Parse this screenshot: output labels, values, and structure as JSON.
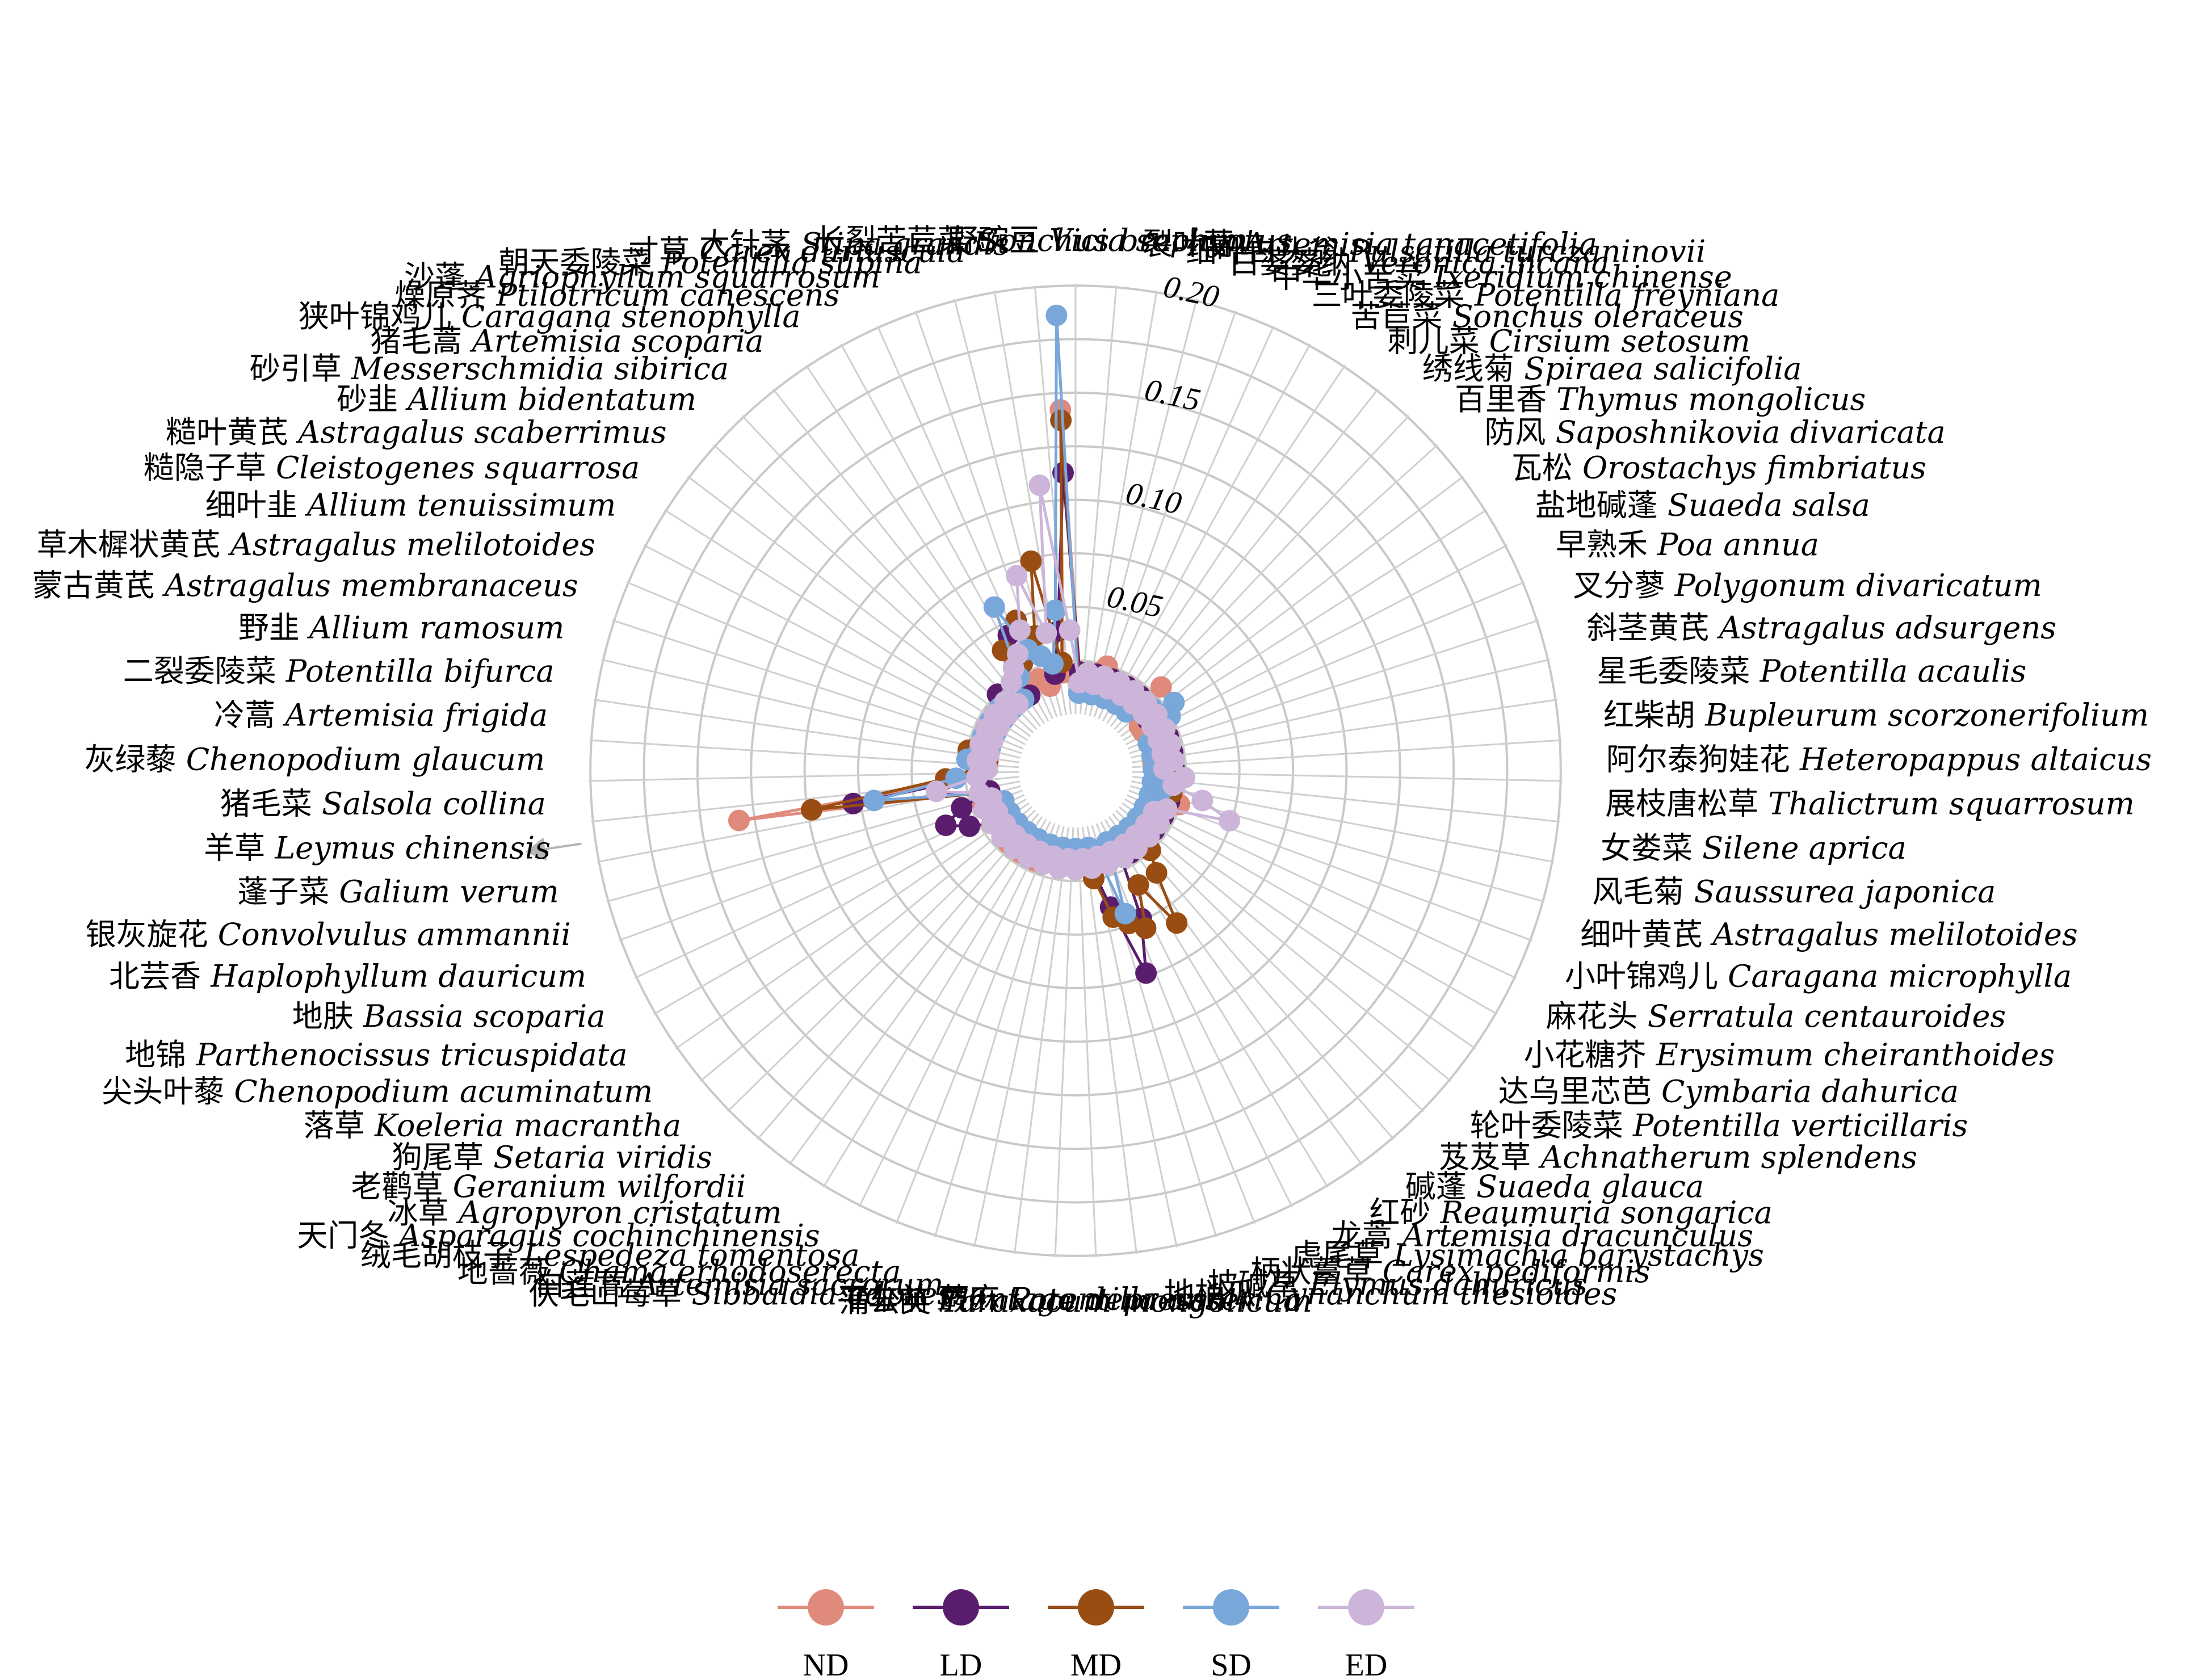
{
  "chart_data": {
    "type": "radar",
    "rlim": [
      0,
      0.2
    ],
    "radial_ticks": [
      "0.05",
      "0.10",
      "0.15",
      "0.20"
    ],
    "tick_values": [
      0.05,
      0.1,
      0.15,
      0.2
    ],
    "grid": true,
    "legend_position": "bottom",
    "categories": [
      {
        "cn": "野豌豆",
        "la": "Vicia sepium"
      },
      {
        "cn": "裂叶蒿",
        "la": "Artemisia tanacetifolia"
      },
      {
        "cn": "细叶白头翁",
        "la": "Pulsatilla turczaninovii"
      },
      {
        "cn": "白婆婆纳",
        "la": "Veronica incana"
      },
      {
        "cn": "中华小苦荬",
        "la": "Ixeridium chinense"
      },
      {
        "cn": "三叶委陵菜",
        "la": "Potentilla freyniana"
      },
      {
        "cn": "苦苣菜",
        "la": "Sonchus oleraceus"
      },
      {
        "cn": "刺儿菜",
        "la": "Cirsium setosum"
      },
      {
        "cn": "绣线菊",
        "la": "Spiraea salicifolia"
      },
      {
        "cn": "百里香",
        "la": "Thymus mongolicus"
      },
      {
        "cn": "防风",
        "la": "Saposhnikovia divaricata"
      },
      {
        "cn": "瓦松",
        "la": "Orostachys fimbriatus"
      },
      {
        "cn": "盐地碱蓬",
        "la": "Suaeda salsa"
      },
      {
        "cn": "早熟禾",
        "la": "Poa annua"
      },
      {
        "cn": "叉分蓼",
        "la": "Polygonum divaricatum"
      },
      {
        "cn": "斜茎黄芪",
        "la": "Astragalus adsurgens"
      },
      {
        "cn": "星毛委陵菜",
        "la": "Potentilla acaulis"
      },
      {
        "cn": "红柴胡",
        "la": "Bupleurum scorzonerifolium"
      },
      {
        "cn": "阿尔泰狗娃花",
        "la": "Heteropappus altaicus"
      },
      {
        "cn": "展枝唐松草",
        "la": "Thalictrum squarrosum"
      },
      {
        "cn": "女娄菜",
        "la": "Silene aprica"
      },
      {
        "cn": "风毛菊",
        "la": "Saussurea japonica"
      },
      {
        "cn": "细叶黄芪",
        "la": "Astragalus melilotoides"
      },
      {
        "cn": "小叶锦鸡儿",
        "la": "Caragana microphylla"
      },
      {
        "cn": "麻花头",
        "la": "Serratula centauroides"
      },
      {
        "cn": "小花糖芥",
        "la": "Erysimum cheiranthoides"
      },
      {
        "cn": "达乌里芯芭",
        "la": "Cymbaria dahurica"
      },
      {
        "cn": "轮叶委陵菜",
        "la": "Potentilla verticillaris"
      },
      {
        "cn": "芨芨草",
        "la": "Achnatherum splendens"
      },
      {
        "cn": "碱蓬",
        "la": "Suaeda glauca"
      },
      {
        "cn": "红砂",
        "la": "Reaumuria songarica"
      },
      {
        "cn": "龙蒿",
        "la": "Artemisia dracunculus"
      },
      {
        "cn": "虎尾草",
        "la": "Lysimachia barystachys"
      },
      {
        "cn": "柄状薹草",
        "la": "Carex pediformis"
      },
      {
        "cn": "披碱草",
        "la": "Elymus dahuricus"
      },
      {
        "cn": "地梢瓜",
        "la": "Cynanchum thesioides"
      },
      {
        "cn": "蕨麻",
        "la": "Potentilla anserina"
      },
      {
        "cn": "蒲公英",
        "la": "Taraxacum mongolicum"
      },
      {
        "cn": "平车前",
        "la": "Plantago depressa"
      },
      {
        "cn": "伏毛山莓草",
        "la": "Sibbaldia adpressa"
      },
      {
        "cn": "白莲蒿",
        "la": "Artemisia sacrorum"
      },
      {
        "cn": "地蔷薇",
        "la": "Chama erhodoserecta"
      },
      {
        "cn": "绒毛胡枝子",
        "la": "Lespedeza tomentosa"
      },
      {
        "cn": "天门冬",
        "la": "Asparagus cochinchinensis"
      },
      {
        "cn": "冰草",
        "la": "Agropyron cristatum"
      },
      {
        "cn": "老鹳草",
        "la": "Geranium wilfordii"
      },
      {
        "cn": "狗尾草",
        "la": "Setaria viridis"
      },
      {
        "cn": "落草",
        "la": "Koeleria macrantha"
      },
      {
        "cn": "尖头叶藜",
        "la": "Chenopodium acuminatum"
      },
      {
        "cn": "地锦",
        "la": "Parthenocissus tricuspidata"
      },
      {
        "cn": "地肤",
        "la": "Bassia scoparia"
      },
      {
        "cn": "北芸香",
        "la": "Haplophyllum dauricum"
      },
      {
        "cn": "银灰旋花",
        "la": "Convolvulus ammannii"
      },
      {
        "cn": "蓬子菜",
        "la": "Galium verum"
      },
      {
        "cn": "羊草",
        "la": "Leymus chinensis"
      },
      {
        "cn": "猪毛菜",
        "la": "Salsola collina"
      },
      {
        "cn": "灰绿藜",
        "la": "Chenopodium glaucum"
      },
      {
        "cn": "冷蒿",
        "la": "Artemisia frigida"
      },
      {
        "cn": "二裂委陵菜",
        "la": "Potentilla bifurca"
      },
      {
        "cn": "野韭",
        "la": "Allium ramosum"
      },
      {
        "cn": "蒙古黄芪",
        "la": "Astragalus membranaceus"
      },
      {
        "cn": "草木樨状黄芪",
        "la": "Astragalus melilotoides"
      },
      {
        "cn": "细叶韭",
        "la": "Allium tenuissimum"
      },
      {
        "cn": "糙隐子草",
        "la": "Cleistogenes squarrosa"
      },
      {
        "cn": "糙叶黄芪",
        "la": "Astragalus scaberrimus"
      },
      {
        "cn": "砂韭",
        "la": "Allium bidentatum"
      },
      {
        "cn": "砂引草",
        "la": "Messerschmidia sibirica"
      },
      {
        "cn": "猪毛蒿",
        "la": "Artemisia scoparia"
      },
      {
        "cn": "狭叶锦鸡儿",
        "la": "Caragana stenophylla"
      },
      {
        "cn": "燥原荠",
        "la": "Ptilotricum canescens"
      },
      {
        "cn": "沙蓬",
        "la": "Agriophyllum squarrosum"
      },
      {
        "cn": "朝天委陵菜",
        "la": "Potentilla supina"
      },
      {
        "cn": "寸草",
        "la": "Carex duriuscula"
      },
      {
        "cn": "大针茅",
        "la": "Stipa grandis"
      },
      {
        "cn": "长裂苦苣菜",
        "la": "Sonchus brachyotus"
      }
    ],
    "series": [
      {
        "name": "ND",
        "color": "#E08A7B",
        "values": [
          0.02,
          0.02,
          0.02,
          0.025,
          0.02,
          0.015,
          0.02,
          0.02,
          0.015,
          0.03,
          0.015,
          0.01,
          0.01,
          0.015,
          0.02,
          0.015,
          0.02,
          0.01,
          0.015,
          0.015,
          0.015,
          0.02,
          0.025,
          0.02,
          0.02,
          0.015,
          0.02,
          0.015,
          0.02,
          0.015,
          0.02,
          0.02,
          0.015,
          0.02,
          0.015,
          0.02,
          0.015,
          0.02,
          0.015,
          0.02,
          0.015,
          0.02,
          0.02,
          0.015,
          0.02,
          0.015,
          0.02,
          0.02,
          0.015,
          0.02,
          0.015,
          0.02,
          0.02,
          0.015,
          0.135,
          0.02,
          0.02,
          0.02,
          0.02,
          0.02,
          0.02,
          0.02,
          0.02,
          0.02,
          0.02,
          0.02,
          0.015,
          0.02,
          0.02,
          0.02,
          0.02,
          0.015,
          0.02,
          0.02,
          0.145
        ]
      },
      {
        "name": "LD",
        "color": "#5A1D6E",
        "values": [
          0.02,
          0.015,
          0.02,
          0.015,
          0.02,
          0.015,
          0.02,
          0.015,
          0.02,
          0.015,
          0.02,
          0.015,
          0.02,
          0.015,
          0.02,
          0.015,
          0.02,
          0.015,
          0.02,
          0.015,
          0.02,
          0.015,
          0.02,
          0.015,
          0.02,
          0.015,
          0.02,
          0.015,
          0.02,
          0.015,
          0.02,
          0.015,
          0.05,
          0.075,
          0.04,
          0.02,
          0.015,
          0.02,
          0.015,
          0.02,
          0.015,
          0.02,
          0.015,
          0.02,
          0.015,
          0.02,
          0.015,
          0.02,
          0.015,
          0.02,
          0.03,
          0.04,
          0.03,
          0.015,
          0.08,
          0.02,
          0.015,
          0.02,
          0.015,
          0.02,
          0.015,
          0.02,
          0.015,
          0.02,
          0.015,
          0.025,
          0.015,
          0.02,
          0.015,
          0.045,
          0.05,
          0.04,
          0.02,
          0.04,
          0.115
        ]
      },
      {
        "name": "MD",
        "color": "#9A4D12",
        "values": [
          0.015,
          0.02,
          0.015,
          0.02,
          0.015,
          0.02,
          0.015,
          0.02,
          0.015,
          0.02,
          0.015,
          0.02,
          0.015,
          0.02,
          0.015,
          0.02,
          0.015,
          0.02,
          0.015,
          0.02,
          0.015,
          0.02,
          0.015,
          0.02,
          0.015,
          0.02,
          0.015,
          0.02,
          0.025,
          0.035,
          0.06,
          0.035,
          0.055,
          0.05,
          0.045,
          0.025,
          0.015,
          0.02,
          0.015,
          0.02,
          0.015,
          0.02,
          0.015,
          0.02,
          0.015,
          0.02,
          0.015,
          0.02,
          0.015,
          0.02,
          0.015,
          0.02,
          0.015,
          0.02,
          0.1,
          0.035,
          0.02,
          0.015,
          0.025,
          0.02,
          0.015,
          0.02,
          0.015,
          0.02,
          0.015,
          0.02,
          0.015,
          0.025,
          0.04,
          0.03,
          0.05,
          0.04,
          0.075,
          0.025,
          0.14
        ]
      },
      {
        "name": "SD",
        "color": "#79A7DA",
        "values": [
          0.01,
          0.015,
          0.01,
          0.015,
          0.01,
          0.015,
          0.01,
          0.015,
          0.01,
          0.015,
          0.02,
          0.03,
          0.025,
          0.015,
          0.01,
          0.015,
          0.01,
          0.015,
          0.01,
          0.015,
          0.01,
          0.015,
          0.01,
          0.015,
          0.01,
          0.015,
          0.01,
          0.015,
          0.01,
          0.015,
          0.01,
          0.015,
          0.01,
          0.045,
          0.015,
          0.01,
          0.015,
          0.01,
          0.015,
          0.01,
          0.015,
          0.01,
          0.015,
          0.01,
          0.015,
          0.01,
          0.015,
          0.01,
          0.015,
          0.01,
          0.015,
          0.01,
          0.015,
          0.02,
          0.07,
          0.03,
          0.015,
          0.025,
          0.02,
          0.015,
          0.02,
          0.015,
          0.02,
          0.015,
          0.02,
          0.015,
          0.02,
          0.015,
          0.025,
          0.06,
          0.035,
          0.03,
          0.025,
          0.05,
          0.19
        ]
      },
      {
        "name": "ED",
        "color": "#CDB5DA",
        "values": [
          0.015,
          0.02,
          0.015,
          0.02,
          0.015,
          0.02,
          0.015,
          0.02,
          0.015,
          0.02,
          0.015,
          0.02,
          0.015,
          0.02,
          0.015,
          0.02,
          0.015,
          0.02,
          0.015,
          0.025,
          0.02,
          0.035,
          0.05,
          0.02,
          0.015,
          0.02,
          0.015,
          0.02,
          0.015,
          0.02,
          0.015,
          0.02,
          0.015,
          0.02,
          0.015,
          0.02,
          0.015,
          0.02,
          0.015,
          0.02,
          0.015,
          0.02,
          0.015,
          0.02,
          0.015,
          0.02,
          0.015,
          0.02,
          0.015,
          0.02,
          0.015,
          0.02,
          0.015,
          0.02,
          0.04,
          0.02,
          0.015,
          0.02,
          0.015,
          0.02,
          0.015,
          0.02,
          0.015,
          0.02,
          0.015,
          0.02,
          0.015,
          0.025,
          0.03,
          0.035,
          0.045,
          0.07,
          0.04,
          0.11,
          0.04
        ]
      }
    ]
  }
}
